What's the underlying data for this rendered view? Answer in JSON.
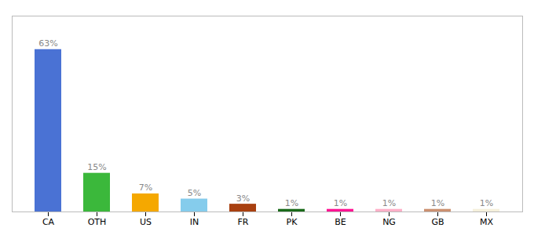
{
  "chart_data": {
    "type": "bar",
    "categories": [
      "CA",
      "OTH",
      "US",
      "IN",
      "FR",
      "PK",
      "BE",
      "NG",
      "GB",
      "MX"
    ],
    "values": [
      63,
      15,
      7,
      5,
      3,
      1,
      1,
      1,
      1,
      1
    ],
    "value_labels": [
      "63%",
      "15%",
      "7%",
      "5%",
      "3%",
      "1%",
      "1%",
      "1%",
      "1%",
      "1%"
    ],
    "data_labels": true,
    "colors": [
      "#4A72D4",
      "#3BB83B",
      "#F5A800",
      "#85CCEC",
      "#A84010",
      "#1A6A1A",
      "#FF1493",
      "#FFB0C8",
      "#CC9070",
      "#F5F0DC"
    ],
    "ylim": [
      0,
      76
    ],
    "tick_labels": "x",
    "grid": false
  }
}
